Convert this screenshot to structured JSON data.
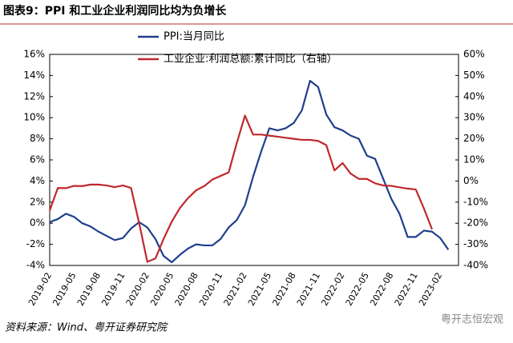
{
  "chart_data": {
    "type": "line",
    "title": "图表9：PPI 和工业企业利润同比均为负增长",
    "source": "资料来源：Wind、粤开证券研究院",
    "watermark": "粤开志恒宏观",
    "categories": [
      "2019-02",
      null,
      null,
      "2019-05",
      null,
      null,
      "2019-08",
      null,
      null,
      "2019-11",
      null,
      null,
      "2020-02",
      null,
      null,
      "2020-05",
      null,
      null,
      "2020-08",
      null,
      null,
      "2020-11",
      null,
      null,
      "2021-02",
      null,
      null,
      "2021-05",
      null,
      null,
      "2021-08",
      null,
      null,
      "2021-11",
      null,
      null,
      "2022-02",
      null,
      null,
      "2022-05",
      null,
      null,
      "2022-08",
      null,
      null,
      "2022-11",
      null,
      null,
      "2023-02",
      null
    ],
    "series": [
      {
        "name": "PPI:当月同比",
        "color": "#1f3f8c",
        "axis": "y",
        "values": [
          0.1,
          0.4,
          0.9,
          0.6,
          0.0,
          -0.3,
          -0.8,
          -1.2,
          -1.6,
          -1.4,
          -0.5,
          0.1,
          -0.4,
          -1.5,
          -3.1,
          -3.7,
          -3.0,
          -2.4,
          -2.0,
          -2.1,
          -2.1,
          -1.5,
          -0.4,
          0.3,
          1.7,
          4.4,
          6.8,
          9.0,
          8.8,
          9.0,
          9.5,
          10.7,
          13.5,
          12.9,
          10.3,
          9.1,
          8.8,
          8.3,
          8.0,
          6.4,
          6.1,
          4.2,
          2.3,
          0.9,
          -1.3,
          -1.3,
          -0.7,
          -0.8,
          -1.4,
          -2.5
        ]
      },
      {
        "name": "工业企业:利润总额:累计同比（右轴）",
        "color": "#c0282d",
        "axis": "y2",
        "values": [
          -14.0,
          -3.3,
          -3.4,
          -2.3,
          -2.4,
          -1.7,
          -1.7,
          -2.1,
          -2.9,
          -2.1,
          -3.3,
          -20,
          -38.3,
          -36.7,
          -27.4,
          -19.3,
          -12.8,
          -8.1,
          -4.4,
          -2.4,
          0.7,
          2.4,
          4.1,
          18,
          31,
          22,
          22,
          21.5,
          21,
          20.5,
          20,
          19.5,
          19.5,
          19,
          17,
          5,
          8.5,
          3.5,
          1.0,
          1.0,
          -1.1,
          -2.1,
          -2.3,
          -3.0,
          -3.6,
          -4.0,
          -13,
          -22.9,
          null,
          null
        ]
      }
    ],
    "ylim": [
      -4,
      16
    ],
    "yticks": [
      {
        "value": -4,
        "label": "-4%"
      },
      {
        "value": -2,
        "label": "-2%"
      },
      {
        "value": 0,
        "label": "0%"
      },
      {
        "value": 2,
        "label": "2%"
      },
      {
        "value": 4,
        "label": "4%"
      },
      {
        "value": 6,
        "label": "6%"
      },
      {
        "value": 8,
        "label": "8%"
      },
      {
        "value": 10,
        "label": "10%"
      },
      {
        "value": 12,
        "label": "12%"
      },
      {
        "value": 14,
        "label": "14%"
      },
      {
        "value": 16,
        "label": "16%"
      }
    ],
    "y2lim": [
      -40,
      60
    ],
    "y2ticks": [
      {
        "value": -40,
        "label": "-40%"
      },
      {
        "value": -30,
        "label": "-30%"
      },
      {
        "value": -20,
        "label": "-20%"
      },
      {
        "value": -10,
        "label": "-10%"
      },
      {
        "value": 0,
        "label": "0%"
      },
      {
        "value": 10,
        "label": "10%"
      },
      {
        "value": 20,
        "label": "20%"
      },
      {
        "value": 30,
        "label": "30%"
      },
      {
        "value": 40,
        "label": "40%"
      },
      {
        "value": 50,
        "label": "50%"
      },
      {
        "value": 60,
        "label": "60%"
      }
    ]
  }
}
